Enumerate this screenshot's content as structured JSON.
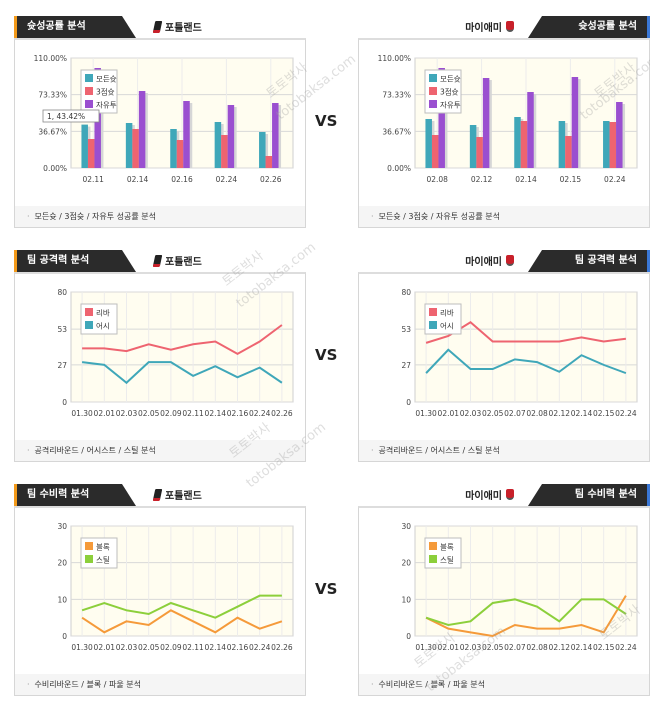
{
  "vs_label": "VS",
  "watermarks": [
    "토토박사",
    "totobaksa.com"
  ],
  "colors": {
    "home_accent": "#f39a1a",
    "away_accent": "#3a78d8",
    "rate_all": "#3fa7b9",
    "rate_3pt": "#ee6470",
    "rate_ft": "#9a4fd0",
    "rebound": "#ee6470",
    "assist": "#3fa7b9",
    "block": "#f59a3a",
    "steal": "#8ccf3b",
    "plot_bg": "#fffdf0"
  },
  "panels": [
    {
      "id": "shooting-home",
      "side": "left",
      "title": "슛성공률 분석",
      "team": "포틀랜드",
      "team_icon": "blazers-logo-icon",
      "footer": "모든슛 / 3점슛 / 자유투 성공률 분석",
      "tooltip": "1, 43.42%",
      "chart_data": {
        "type": "bar",
        "ylim": [
          0,
          110
        ],
        "ticks": [
          "110.00%",
          "73.33%",
          "36.67%",
          "0.00%"
        ],
        "tick_values": [
          110,
          73.33,
          36.67,
          0
        ],
        "categories": [
          "02.11",
          "02.14",
          "02.16",
          "02.24",
          "02.26"
        ],
        "series": [
          {
            "name": "모든슛",
            "color_key": "rate_all",
            "values": [
              43.4,
              45,
              39,
              46,
              36
            ]
          },
          {
            "name": "3점슛",
            "color_key": "rate_3pt",
            "values": [
              29,
              39,
              28,
              33,
              12
            ]
          },
          {
            "name": "자유투",
            "color_key": "rate_ft",
            "values": [
              100,
              77,
              67,
              63,
              65
            ]
          }
        ]
      }
    },
    {
      "id": "shooting-away",
      "side": "right",
      "title": "슛성공률 분석",
      "team": "마이애미",
      "team_icon": "heat-logo-icon",
      "footer": "모든슛 / 3점슛 / 자유투 성공률 분석",
      "chart_data": {
        "type": "bar",
        "ylim": [
          0,
          110
        ],
        "ticks": [
          "110.00%",
          "73.33%",
          "36.67%",
          "0.00%"
        ],
        "tick_values": [
          110,
          73.33,
          36.67,
          0
        ],
        "categories": [
          "02.08",
          "02.12",
          "02.14",
          "02.15",
          "02.24"
        ],
        "series": [
          {
            "name": "모든슛",
            "color_key": "rate_all",
            "values": [
              49,
              43,
              51,
              47,
              47
            ]
          },
          {
            "name": "3점슛",
            "color_key": "rate_3pt",
            "values": [
              33,
              31,
              47,
              32,
              46
            ]
          },
          {
            "name": "자유투",
            "color_key": "rate_ft",
            "values": [
              100,
              90,
              76,
              91,
              66
            ]
          }
        ]
      }
    },
    {
      "id": "offense-home",
      "side": "left",
      "title": "팀 공격력 분석",
      "team": "포틀랜드",
      "team_icon": "blazers-logo-icon",
      "footer": "공격리바운드 / 어시스트 / 스틸 분석",
      "chart_data": {
        "type": "line",
        "ylim": [
          0,
          80
        ],
        "ticks": [
          "80",
          "53",
          "27",
          "0"
        ],
        "tick_values": [
          80,
          53,
          27,
          0
        ],
        "categories": [
          "01.30",
          "02.01",
          "02.03",
          "02.05",
          "02.09",
          "02.11",
          "02.14",
          "02.16",
          "02.24",
          "02.26"
        ],
        "series": [
          {
            "name": "리바",
            "color_key": "rebound",
            "values": [
              39,
              39,
              37,
              42,
              38,
              42,
              44,
              35,
              44,
              56
            ]
          },
          {
            "name": "어시",
            "color_key": "assist",
            "values": [
              29,
              27,
              14,
              29,
              29,
              19,
              26,
              18,
              25,
              14
            ]
          }
        ]
      }
    },
    {
      "id": "offense-away",
      "side": "right",
      "title": "팀 공격력 분석",
      "team": "마이애미",
      "team_icon": "heat-logo-icon",
      "footer": "공격리바운드 / 어시스트 / 스틸 분석",
      "chart_data": {
        "type": "line",
        "ylim": [
          0,
          80
        ],
        "ticks": [
          "80",
          "53",
          "27",
          "0"
        ],
        "tick_values": [
          80,
          53,
          27,
          0
        ],
        "categories": [
          "01.30",
          "02.01",
          "02.03",
          "02.05",
          "02.07",
          "02.08",
          "02.12",
          "02.14",
          "02.15",
          "02.24"
        ],
        "series": [
          {
            "name": "리바",
            "color_key": "rebound",
            "values": [
              43,
              48,
              58,
              44,
              44,
              44,
              44,
              47,
              44,
              46
            ]
          },
          {
            "name": "어시",
            "color_key": "assist",
            "values": [
              21,
              38,
              24,
              24,
              31,
              29,
              22,
              34,
              27,
              21
            ]
          }
        ]
      }
    },
    {
      "id": "defense-home",
      "side": "left",
      "title": "팀 수비력 분석",
      "team": "포틀랜드",
      "team_icon": "blazers-logo-icon",
      "footer": "수비리바운드 / 블록 / 파울 분석",
      "chart_data": {
        "type": "line",
        "ylim": [
          0,
          30
        ],
        "ticks": [
          "30",
          "20",
          "10",
          "0"
        ],
        "tick_values": [
          30,
          20,
          10,
          0
        ],
        "categories": [
          "01.30",
          "02.01",
          "02.03",
          "02.05",
          "02.09",
          "02.11",
          "02.14",
          "02.16",
          "02.24",
          "02.26"
        ],
        "series": [
          {
            "name": "블록",
            "color_key": "block",
            "values": [
              5,
              1,
              4,
              3,
              7,
              4,
              1,
              5,
              2,
              4
            ]
          },
          {
            "name": "스틸",
            "color_key": "steal",
            "values": [
              7,
              9,
              7,
              6,
              9,
              7,
              5,
              8,
              11,
              11
            ]
          }
        ]
      }
    },
    {
      "id": "defense-away",
      "side": "right",
      "title": "팀 수비력 분석",
      "team": "마이애미",
      "team_icon": "heat-logo-icon",
      "footer": "수비리바운드 / 블록 / 파울 분석",
      "chart_data": {
        "type": "line",
        "ylim": [
          0,
          30
        ],
        "ticks": [
          "30",
          "20",
          "10",
          "0"
        ],
        "tick_values": [
          30,
          20,
          10,
          0
        ],
        "categories": [
          "01.30",
          "02.01",
          "02.03",
          "02.05",
          "02.07",
          "02.08",
          "02.12",
          "02.14",
          "02.15",
          "02.24"
        ],
        "series": [
          {
            "name": "블록",
            "color_key": "block",
            "values": [
              5,
              2,
              1,
              0,
              3,
              2,
              2,
              3,
              1,
              11
            ]
          },
          {
            "name": "스틸",
            "color_key": "steal",
            "values": [
              5,
              3,
              4,
              9,
              10,
              8,
              4,
              10,
              10,
              6
            ]
          }
        ]
      }
    }
  ]
}
